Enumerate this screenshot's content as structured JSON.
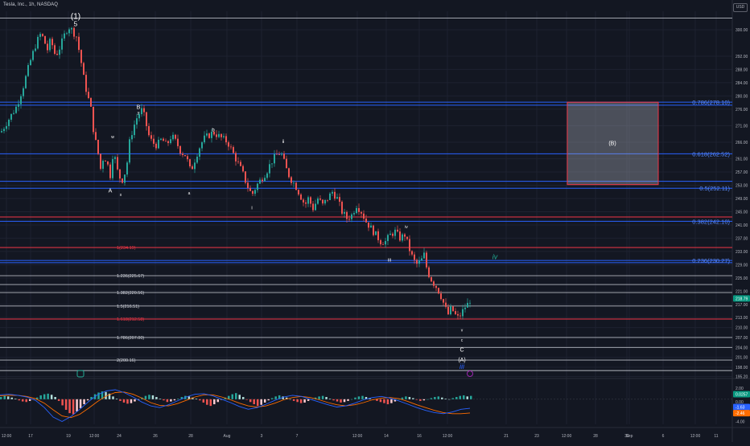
{
  "symbol_header": "Tesla, Inc., 1h, NASDAQ",
  "currency_button": "USD",
  "colors": {
    "background": "#131722",
    "grid": "#1e2230",
    "candle_up": "#26a69a",
    "candle_down": "#ef5350",
    "fib_blue": "#2962ff",
    "fib_blue_text": "#5b8cff",
    "red_line": "#f23645",
    "white_line": "#d1d4dc",
    "macd_line": "#2962ff",
    "signal_line": "#ff6d00",
    "price_tag": "#089981",
    "wave_iv_teal": "#22ab94",
    "wave_iii_blue": "#2962ff",
    "purple_marker": "#9c27b0"
  },
  "chart_data": {
    "type": "candlestick",
    "price_axis_labels": [
      "300.00",
      "292.00",
      "288.00",
      "284.00",
      "280.00",
      "276.00",
      "271.00",
      "266.00",
      "261.00",
      "257.00",
      "253.00",
      "249.00",
      "245.00",
      "241.00",
      "237.00",
      "233.00",
      "229.00",
      "225.00",
      "221.00",
      "217.00",
      "213.00",
      "210.00",
      "207.00",
      "204.00",
      "201.00",
      "198.00",
      "195.20"
    ],
    "ylim": [
      195.2,
      305
    ],
    "time_axis_labels": [
      "12:00",
      "17",
      "19",
      "12:00",
      "24",
      "26",
      "28",
      "Aug",
      "3",
      "7",
      "12:00",
      "14",
      "16",
      "12:00",
      "21",
      "23",
      "12:00",
      "28",
      "30",
      "Sep",
      "6",
      "12:00",
      "11"
    ],
    "last_price": "218.79",
    "path_points": [
      [
        0,
        269
      ],
      [
        10,
        273
      ],
      [
        20,
        277
      ],
      [
        28,
        283
      ],
      [
        36,
        290
      ],
      [
        44,
        296
      ],
      [
        50,
        299
      ],
      [
        58,
        294
      ],
      [
        62,
        297
      ],
      [
        68,
        292
      ],
      [
        74,
        295
      ],
      [
        80,
        299
      ],
      [
        84,
        301
      ],
      [
        88,
        300
      ],
      [
        94,
        298
      ],
      [
        100,
        290
      ],
      [
        104,
        284
      ],
      [
        108,
        280
      ],
      [
        112,
        276
      ],
      [
        116,
        268
      ],
      [
        120,
        264
      ],
      [
        124,
        258
      ],
      [
        128,
        262
      ],
      [
        132,
        260
      ],
      [
        136,
        256
      ],
      [
        140,
        264
      ],
      [
        144,
        258
      ],
      [
        150,
        254
      ],
      [
        156,
        258
      ],
      [
        160,
        266
      ],
      [
        164,
        270
      ],
      [
        170,
        274
      ],
      [
        176,
        276
      ],
      [
        180,
        272
      ],
      [
        184,
        268
      ],
      [
        188,
        266
      ],
      [
        194,
        265
      ],
      [
        200,
        267
      ],
      [
        206,
        265
      ],
      [
        212,
        268
      ],
      [
        218,
        266
      ],
      [
        224,
        263
      ],
      [
        230,
        262
      ],
      [
        236,
        257
      ],
      [
        240,
        260
      ],
      [
        246,
        264
      ],
      [
        252,
        267
      ],
      [
        258,
        268
      ],
      [
        264,
        269
      ],
      [
        270,
        268
      ],
      [
        276,
        267
      ],
      [
        282,
        266
      ],
      [
        288,
        263
      ],
      [
        294,
        260
      ],
      [
        300,
        257
      ],
      [
        306,
        253
      ],
      [
        312,
        250
      ],
      [
        318,
        253
      ],
      [
        324,
        255
      ],
      [
        330,
        257
      ],
      [
        336,
        260
      ],
      [
        342,
        262
      ],
      [
        348,
        263
      ],
      [
        352,
        260
      ],
      [
        356,
        257
      ],
      [
        360,
        255
      ],
      [
        366,
        253
      ],
      [
        372,
        250
      ],
      [
        378,
        247
      ],
      [
        382,
        249
      ],
      [
        388,
        246
      ],
      [
        394,
        249
      ],
      [
        400,
        247
      ],
      [
        406,
        249
      ],
      [
        412,
        251
      ],
      [
        418,
        249
      ],
      [
        424,
        245
      ],
      [
        430,
        243
      ],
      [
        436,
        244
      ],
      [
        442,
        247
      ],
      [
        448,
        245
      ],
      [
        454,
        242
      ],
      [
        460,
        240
      ],
      [
        466,
        238
      ],
      [
        472,
        236
      ],
      [
        478,
        236
      ],
      [
        484,
        238
      ],
      [
        490,
        239
      ],
      [
        496,
        237
      ],
      [
        502,
        238
      ],
      [
        506,
        235
      ],
      [
        510,
        232
      ],
      [
        516,
        229
      ],
      [
        522,
        230
      ],
      [
        526,
        232
      ],
      [
        530,
        227
      ],
      [
        536,
        224
      ],
      [
        542,
        222
      ],
      [
        548,
        219
      ],
      [
        552,
        216
      ],
      [
        556,
        214
      ],
      [
        560,
        216
      ],
      [
        564,
        214
      ],
      [
        568,
        213
      ],
      [
        572,
        214
      ],
      [
        576,
        216
      ],
      [
        580,
        217
      ],
      [
        584,
        218.8
      ]
    ],
    "fib_right_label_boxes": [
      {
        "label": "0.786(278.10)",
        "price": 278.1
      },
      {
        "label": "0.618(262.52)",
        "price": 262.52
      },
      {
        "label": "0.5(252.11)",
        "price": 252.11
      },
      {
        "label": "0.382(242.10)",
        "price": 242.1
      },
      {
        "label": "0.236(230.27)",
        "price": 230.27
      }
    ],
    "blue_lines": [
      278.1,
      277.2,
      262.52,
      254.2,
      252.11,
      242.1,
      230.27,
      229.6
    ],
    "red_lines": [
      243.4,
      234.19,
      212.58
    ],
    "white_lines": [
      303.5,
      225.67,
      223.0,
      220.56,
      216.51,
      207.0,
      204.0,
      200.16,
      197.0
    ],
    "fib_left_labels": [
      {
        "label": "1(234.19)",
        "price": 234.19,
        "color": "red"
      },
      {
        "label": "1.236(225.67)",
        "price": 225.67,
        "color": "white"
      },
      {
        "label": "1.382(220.56)",
        "price": 220.56,
        "color": "white"
      },
      {
        "label": "1.5(216.51)",
        "price": 216.51,
        "color": "white"
      },
      {
        "label": "1.618(212.58)",
        "price": 212.58,
        "color": "red"
      },
      {
        "label": "1.786(207.00)",
        "price": 207.0,
        "color": "white"
      },
      {
        "label": "2(200.16)",
        "price": 200.16,
        "color": "white"
      }
    ],
    "wave_labels": [
      {
        "label": "(1)",
        "price": 304.0,
        "x": 94,
        "color": "white",
        "size": 10
      },
      {
        "label": "5",
        "price": 301.8,
        "x": 94,
        "color": "white",
        "size": 8
      },
      {
        "label": "B",
        "price": 276.8,
        "x": 172,
        "color": "white",
        "size": 7
      },
      {
        "label": "y",
        "price": 275.2,
        "x": 172,
        "color": "white",
        "size": 5
      },
      {
        "label": "w",
        "price": 268.0,
        "x": 140,
        "color": "white",
        "size": 5
      },
      {
        "label": "b",
        "price": 270.0,
        "x": 265,
        "color": "white",
        "size": 6
      },
      {
        "label": "ii",
        "price": 266.5,
        "x": 352,
        "color": "white",
        "size": 6
      },
      {
        "label": "A",
        "price": 251.5,
        "x": 137,
        "color": "white",
        "size": 7
      },
      {
        "label": "x",
        "price": 250.5,
        "x": 150,
        "color": "white",
        "size": 5
      },
      {
        "label": "a",
        "price": 251.0,
        "x": 235,
        "color": "white",
        "size": 5
      },
      {
        "label": "i",
        "price": 246.5,
        "x": 313,
        "color": "white",
        "size": 6
      },
      {
        "label": "iv",
        "price": 240.8,
        "x": 505,
        "color": "white",
        "size": 5
      },
      {
        "label": "iii",
        "price": 230.7,
        "x": 484,
        "color": "white",
        "size": 6
      },
      {
        "label": "iv",
        "price": 231.4,
        "x": 615,
        "color": "teal",
        "size": 9
      },
      {
        "label": "v",
        "price": 209.5,
        "x": 574,
        "color": "white",
        "size": 5
      },
      {
        "label": "c",
        "price": 206.5,
        "x": 574,
        "color": "white",
        "size": 5
      },
      {
        "label": "C",
        "price": 203.5,
        "x": 574,
        "color": "white",
        "size": 7
      },
      {
        "label": "(A)",
        "price": 200.4,
        "x": 574,
        "color": "white",
        "size": 7
      },
      {
        "label": "iii",
        "price": 198.2,
        "x": 574,
        "color": "blue",
        "size": 9
      }
    ],
    "b_box": {
      "label": "(B)",
      "top": 278.1,
      "bottom": 253.2
    },
    "macd": {
      "axis_labels": [
        "2.00",
        "0.00",
        "-4.00"
      ],
      "tags": [
        {
          "text": "0.0257",
          "color": "#089981"
        },
        {
          "text": "-1.63",
          "color": "#2962ff"
        },
        {
          "text": "-2.46",
          "color": "#ff6d00"
        }
      ],
      "histogram": [
        0.4,
        0.6,
        0.5,
        0.3,
        0.1,
        -0.2,
        -0.4,
        -0.5,
        -0.3,
        -0.1,
        0.3,
        0.7,
        0.9,
        1.0,
        0.8,
        0.4,
        -0.3,
        -1.1,
        -1.9,
        -2.5,
        -2.7,
        -2.2,
        -1.6,
        -0.9,
        -0.2,
        0.4,
        0.9,
        1.2,
        1.4,
        1.3,
        1.0,
        0.5,
        0.1,
        -0.3,
        -0.6,
        -0.8,
        -0.7,
        -0.4,
        -0.1,
        0.3,
        0.6,
        0.8,
        0.7,
        0.4,
        0.1,
        -0.2,
        -0.5,
        -0.4,
        -0.2,
        0.1,
        0.4,
        0.6,
        0.5,
        0.3,
        0.1,
        -0.2,
        -0.6,
        -1.0,
        -1.2,
        -0.9,
        -0.5,
        -0.1,
        0.3,
        0.6,
        0.9,
        1.1,
        0.8,
        0.4,
        -0.1,
        -0.5,
        -0.9,
        -1.2,
        -1.0,
        -0.6,
        -0.2,
        0.2,
        0.5,
        0.7,
        0.5,
        0.3,
        0.0,
        -0.3,
        -0.5,
        -0.7,
        -0.6,
        -0.3,
        0.0,
        0.3,
        0.5,
        0.6,
        0.4,
        0.1,
        -0.2,
        -0.4,
        -0.6,
        -0.5,
        -0.3,
        0.0,
        0.3,
        0.5,
        0.6,
        0.4,
        0.2,
        -0.1,
        -0.3,
        -0.5,
        -0.7,
        -0.9,
        -0.7,
        -0.4,
        0.0,
        0.3,
        0.5,
        0.4,
        0.2,
        -0.1,
        -0.3,
        -0.2,
        0.0,
        0.2,
        0.4,
        0.5,
        0.3,
        0.1,
        0.0,
        0.2,
        0.4,
        0.6,
        0.7,
        0.5,
        0.6
      ],
      "macd_line": [
        0.8,
        0.9,
        0.7,
        0.4,
        -0.2,
        -1.5,
        -3.2,
        -4.0,
        -3.1,
        -1.8,
        -0.4,
        0.8,
        1.5,
        1.7,
        1.2,
        0.4,
        -0.5,
        -1.2,
        -1.5,
        -1.0,
        -0.3,
        0.4,
        0.9,
        1.0,
        0.6,
        0.0,
        -0.6,
        -1.3,
        -1.8,
        -1.5,
        -0.9,
        -0.2,
        0.4,
        0.7,
        0.5,
        0.0,
        -0.5,
        -1.0,
        -1.4,
        -1.2,
        -0.7,
        -0.1,
        0.3,
        0.5,
        0.2,
        -0.3,
        -0.9,
        -1.5,
        -2.0,
        -2.4,
        -2.6,
        -2.3,
        -1.8,
        -1.63
      ],
      "signal_line": [
        0.6,
        0.7,
        0.7,
        0.5,
        0.1,
        -0.7,
        -1.9,
        -3.0,
        -3.3,
        -2.7,
        -1.6,
        -0.4,
        0.6,
        1.2,
        1.3,
        0.9,
        0.2,
        -0.6,
        -1.1,
        -1.2,
        -0.8,
        -0.2,
        0.4,
        0.8,
        0.8,
        0.4,
        -0.1,
        -0.7,
        -1.2,
        -1.4,
        -1.2,
        -0.7,
        -0.1,
        0.3,
        0.5,
        0.3,
        -0.1,
        -0.6,
        -1.0,
        -1.2,
        -1.0,
        -0.6,
        -0.1,
        0.2,
        0.3,
        0.1,
        -0.4,
        -1.0,
        -1.5,
        -2.0,
        -2.4,
        -2.6,
        -2.6,
        -2.46
      ]
    }
  }
}
